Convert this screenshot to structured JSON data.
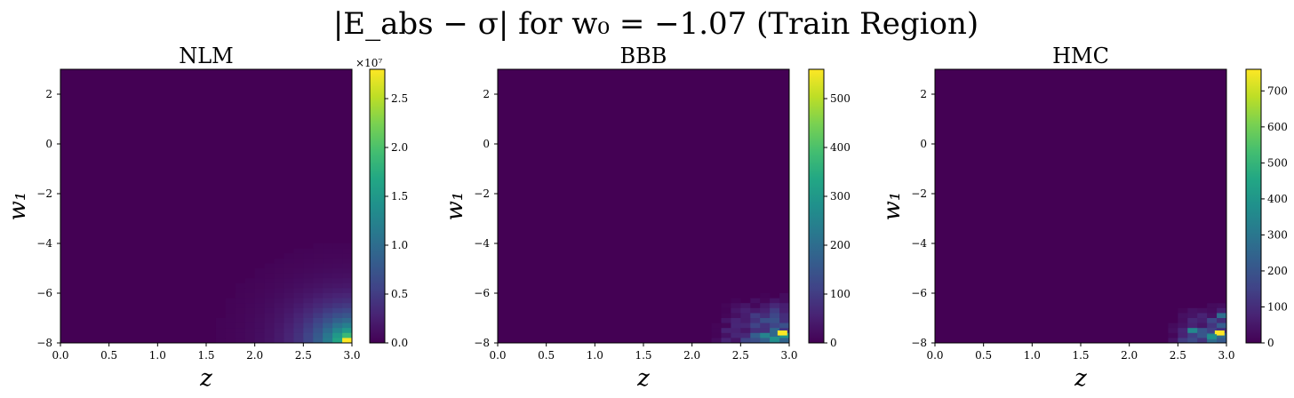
{
  "figure": {
    "suptitle": "|E_abs − σ| for w₀ = −1.07 (Train Region)"
  },
  "chart_data": [
    {
      "type": "heatmap",
      "title": "NLM",
      "xlabel": "z",
      "ylabel": "w₁",
      "xlim": [
        0,
        3
      ],
      "ylim": [
        -8,
        3
      ],
      "x_ticks": [
        "0.0",
        "0.5",
        "1.0",
        "1.5",
        "2.0",
        "2.5",
        "3.0"
      ],
      "y_ticks": [
        "2",
        "0",
        "−2",
        "−4",
        "−6",
        "−8"
      ],
      "colorbar": {
        "min": 0,
        "max": 2.8,
        "ticks": [
          "0.0",
          "0.5",
          "1.0",
          "1.5",
          "2.0",
          "2.5"
        ],
        "tick_values": [
          0,
          0.5,
          1.0,
          1.5,
          2.0,
          2.5
        ],
        "multiplier": "×10⁷"
      },
      "pattern": "smooth",
      "description_of_values": "near zero everywhere; increases smoothly toward the bottom-right corner (z≈3, w₁≈−8) reaching ~2.8e7"
    },
    {
      "type": "heatmap",
      "title": "BBB",
      "xlabel": "z",
      "ylabel": "w₁",
      "xlim": [
        0,
        3
      ],
      "ylim": [
        -8,
        3
      ],
      "x_ticks": [
        "0.0",
        "0.5",
        "1.0",
        "1.5",
        "2.0",
        "2.5",
        "3.0"
      ],
      "y_ticks": [
        "2",
        "0",
        "−2",
        "−4",
        "−6",
        "−8"
      ],
      "colorbar": {
        "min": 0,
        "max": 560,
        "ticks": [
          "0",
          "100",
          "200",
          "300",
          "400",
          "500"
        ],
        "tick_values": [
          0,
          100,
          200,
          300,
          400,
          500
        ],
        "multiplier": ""
      },
      "pattern": "noisy",
      "description_of_values": "near zero everywhere; noisy nonzero cells in bottom-right region z>2.2, w₁<−6, peak ~560"
    },
    {
      "type": "heatmap",
      "title": "HMC",
      "xlabel": "z",
      "ylabel": "w₁",
      "xlim": [
        0,
        3
      ],
      "ylim": [
        -8,
        3
      ],
      "x_ticks": [
        "0.0",
        "0.5",
        "1.0",
        "1.5",
        "2.0",
        "2.5",
        "3.0"
      ],
      "y_ticks": [
        "2",
        "0",
        "−2",
        "−4",
        "−6",
        "−8"
      ],
      "colorbar": {
        "min": 0,
        "max": 760,
        "ticks": [
          "0",
          "100",
          "200",
          "300",
          "400",
          "500",
          "600",
          "700"
        ],
        "tick_values": [
          0,
          100,
          200,
          300,
          400,
          500,
          600,
          700
        ],
        "multiplier": ""
      },
      "pattern": "noisy",
      "description_of_values": "near zero everywhere; sparse noisy nonzero cells in bottom-right region z>2.4, w₁<−6.5, peak ~760"
    }
  ]
}
